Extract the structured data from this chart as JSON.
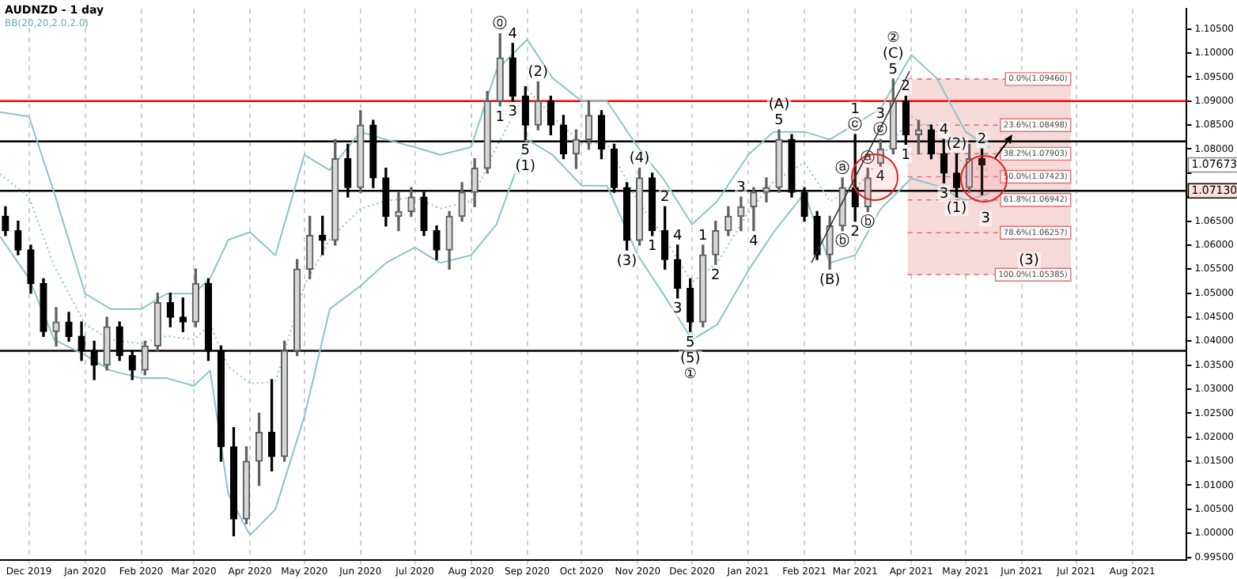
{
  "chart_data": {
    "type": "candlestick",
    "title": "AUDNZD - 1 day",
    "subtitle": "BB(20,20,2.0,2.0)",
    "x": [
      "2019-11-18",
      "2019-11-25",
      "2019-12-02",
      "2019-12-09",
      "2019-12-16",
      "2019-12-23",
      "2019-12-30",
      "2020-01-06",
      "2020-01-13",
      "2020-01-20",
      "2020-01-27",
      "2020-02-03",
      "2020-02-10",
      "2020-02-17",
      "2020-02-24",
      "2020-03-02",
      "2020-03-09",
      "2020-03-16",
      "2020-03-23",
      "2020-03-30",
      "2020-04-06",
      "2020-04-13",
      "2020-04-20",
      "2020-04-27",
      "2020-05-04",
      "2020-05-11",
      "2020-05-18",
      "2020-05-25",
      "2020-06-01",
      "2020-06-08",
      "2020-06-15",
      "2020-06-22",
      "2020-06-29",
      "2020-07-06",
      "2020-07-13",
      "2020-07-20",
      "2020-07-27",
      "2020-08-03",
      "2020-08-10",
      "2020-08-17",
      "2020-08-24",
      "2020-08-31",
      "2020-09-07",
      "2020-09-14",
      "2020-09-21",
      "2020-09-28",
      "2020-10-05",
      "2020-10-12",
      "2020-10-19",
      "2020-10-26",
      "2020-11-02",
      "2020-11-09",
      "2020-11-16",
      "2020-11-23",
      "2020-11-30",
      "2020-12-07",
      "2020-12-14",
      "2020-12-21",
      "2020-12-28",
      "2021-01-04",
      "2021-01-11",
      "2021-01-18",
      "2021-01-25",
      "2021-02-01",
      "2021-02-08",
      "2021-02-15",
      "2021-02-22",
      "2021-03-01",
      "2021-03-08",
      "2021-03-15",
      "2021-03-22",
      "2021-03-29",
      "2021-04-05",
      "2021-04-12",
      "2021-04-19",
      "2021-04-26",
      "2021-05-03",
      "2021-05-10"
    ],
    "ohlc": [
      [
        1.066,
        1.068,
        1.062,
        1.063
      ],
      [
        1.063,
        1.065,
        1.058,
        1.059
      ],
      [
        1.059,
        1.06,
        1.05,
        1.052
      ],
      [
        1.052,
        1.053,
        1.041,
        1.042
      ],
      [
        1.042,
        1.047,
        1.039,
        1.044
      ],
      [
        1.044,
        1.046,
        1.04,
        1.041
      ],
      [
        1.041,
        1.044,
        1.036,
        1.038
      ],
      [
        1.038,
        1.04,
        1.032,
        1.035
      ],
      [
        1.035,
        1.045,
        1.034,
        1.043
      ],
      [
        1.043,
        1.044,
        1.036,
        1.037
      ],
      [
        1.037,
        1.038,
        1.032,
        1.034
      ],
      [
        1.034,
        1.04,
        1.033,
        1.039
      ],
      [
        1.039,
        1.05,
        1.038,
        1.048
      ],
      [
        1.048,
        1.05,
        1.043,
        1.045
      ],
      [
        1.045,
        1.049,
        1.042,
        1.044
      ],
      [
        1.044,
        1.055,
        1.043,
        1.052
      ],
      [
        1.052,
        1.053,
        1.036,
        1.038
      ],
      [
        1.038,
        1.039,
        1.015,
        1.018
      ],
      [
        1.018,
        1.022,
        0.9995,
        1.003
      ],
      [
        1.003,
        1.018,
        1.002,
        1.015
      ],
      [
        1.015,
        1.025,
        1.01,
        1.021
      ],
      [
        1.021,
        1.032,
        1.013,
        1.016
      ],
      [
        1.016,
        1.04,
        1.015,
        1.038
      ],
      [
        1.038,
        1.057,
        1.037,
        1.055
      ],
      [
        1.055,
        1.066,
        1.053,
        1.062
      ],
      [
        1.062,
        1.066,
        1.058,
        1.061
      ],
      [
        1.061,
        1.082,
        1.06,
        1.078
      ],
      [
        1.078,
        1.081,
        1.07,
        1.072
      ],
      [
        1.072,
        1.088,
        1.071,
        1.085
      ],
      [
        1.085,
        1.086,
        1.072,
        1.074
      ],
      [
        1.074,
        1.076,
        1.064,
        1.066
      ],
      [
        1.066,
        1.071,
        1.063,
        1.067
      ],
      [
        1.067,
        1.072,
        1.066,
        1.07
      ],
      [
        1.07,
        1.071,
        1.062,
        1.063
      ],
      [
        1.063,
        1.064,
        1.057,
        1.059
      ],
      [
        1.059,
        1.067,
        1.055,
        1.066
      ],
      [
        1.066,
        1.073,
        1.065,
        1.071
      ],
      [
        1.071,
        1.078,
        1.068,
        1.076
      ],
      [
        1.076,
        1.092,
        1.075,
        1.09
      ],
      [
        1.09,
        1.104,
        1.089,
        1.099
      ],
      [
        1.099,
        1.102,
        1.09,
        1.091
      ],
      [
        1.091,
        1.093,
        1.082,
        1.085
      ],
      [
        1.085,
        1.094,
        1.084,
        1.09
      ],
      [
        1.09,
        1.091,
        1.083,
        1.085
      ],
      [
        1.085,
        1.087,
        1.078,
        1.079
      ],
      [
        1.079,
        1.084,
        1.076,
        1.082
      ],
      [
        1.082,
        1.09,
        1.08,
        1.087
      ],
      [
        1.087,
        1.088,
        1.078,
        1.08
      ],
      [
        1.08,
        1.081,
        1.071,
        1.072
      ],
      [
        1.072,
        1.073,
        1.059,
        1.061
      ],
      [
        1.061,
        1.076,
        1.06,
        1.074
      ],
      [
        1.074,
        1.075,
        1.062,
        1.063
      ],
      [
        1.063,
        1.068,
        1.055,
        1.057
      ],
      [
        1.057,
        1.06,
        1.049,
        1.051
      ],
      [
        1.051,
        1.053,
        1.042,
        1.044
      ],
      [
        1.044,
        1.06,
        1.043,
        1.058
      ],
      [
        1.058,
        1.065,
        1.056,
        1.063
      ],
      [
        1.063,
        1.068,
        1.062,
        1.066
      ],
      [
        1.066,
        1.07,
        1.063,
        1.068
      ],
      [
        1.068,
        1.072,
        1.063,
        1.071
      ],
      [
        1.071,
        1.074,
        1.069,
        1.072
      ],
      [
        1.072,
        1.084,
        1.071,
        1.082
      ],
      [
        1.082,
        1.083,
        1.07,
        1.071
      ],
      [
        1.071,
        1.072,
        1.065,
        1.066
      ],
      [
        1.066,
        1.067,
        1.057,
        1.058
      ],
      [
        1.058,
        1.066,
        1.055,
        1.064
      ],
      [
        1.064,
        1.074,
        1.063,
        1.072
      ],
      [
        1.072,
        1.083,
        1.065,
        1.068
      ],
      [
        1.068,
        1.076,
        1.067,
        1.074
      ],
      [
        1.077,
        1.082,
        1.0765,
        1.08
      ],
      [
        1.08,
        1.0946,
        1.079,
        1.09
      ],
      [
        1.09,
        1.091,
        1.081,
        1.083
      ],
      [
        1.083,
        1.086,
        1.079,
        1.084
      ],
      [
        1.084,
        1.085,
        1.078,
        1.079
      ],
      [
        1.079,
        1.082,
        1.073,
        1.075
      ],
      [
        1.075,
        1.079,
        1.07,
        1.072
      ],
      [
        1.072,
        1.081,
        1.071,
        1.078
      ],
      [
        1.078,
        1.08,
        1.0705,
        1.0767
      ]
    ],
    "series": [
      {
        "type": "line",
        "color": "#8cc4cc",
        "line_style": "solid",
        "x": [
          "2019-11-15",
          "2019-12-01",
          "2019-12-15",
          "2020-01-01",
          "2020-01-15",
          "2020-02-01",
          "2020-02-15",
          "2020-03-01",
          "2020-03-10",
          "2020-03-20",
          "2020-04-01",
          "2020-04-15",
          "2020-05-01",
          "2020-05-15",
          "2020-06-01",
          "2020-06-15",
          "2020-07-01",
          "2020-07-15",
          "2020-08-01",
          "2020-08-15",
          "2020-09-01",
          "2020-09-15",
          "2020-10-01",
          "2020-10-15",
          "2020-11-01",
          "2020-11-15",
          "2020-12-01",
          "2020-12-15",
          "2021-01-01",
          "2021-01-15",
          "2021-02-01",
          "2021-02-15",
          "2021-03-01",
          "2021-03-15",
          "2021-04-01",
          "2021-04-15",
          "2021-05-01",
          "2021-05-14"
        ],
        "values": [
          1.0877,
          1.0868,
          1.0708,
          1.0499,
          1.0467,
          1.0467,
          1.0499,
          1.0499,
          1.0531,
          1.0611,
          1.0627,
          1.0579,
          1.0788,
          1.0756,
          1.0836,
          1.082,
          1.0804,
          1.0788,
          1.0804,
          1.0964,
          1.1028,
          1.0948,
          1.09,
          1.09,
          1.0804,
          1.0739,
          1.0643,
          1.0692,
          1.0788,
          1.0836,
          1.0836,
          1.082,
          1.0852,
          1.0884,
          1.0996,
          1.0948,
          1.0836,
          1.0804
        ]
      },
      {
        "type": "line",
        "color": "#8cc4cc",
        "line_style": "dotted",
        "x": [
          "2019-11-15",
          "2019-12-01",
          "2019-12-15",
          "2020-01-01",
          "2020-01-15",
          "2020-02-01",
          "2020-02-15",
          "2020-03-01",
          "2020-03-10",
          "2020-03-20",
          "2020-04-01",
          "2020-04-15",
          "2020-05-01",
          "2020-05-15",
          "2020-06-01",
          "2020-06-15",
          "2020-07-01",
          "2020-07-15",
          "2020-08-01",
          "2020-08-15",
          "2020-09-01",
          "2020-09-15",
          "2020-10-01",
          "2020-10-15",
          "2020-11-01",
          "2020-11-15",
          "2020-12-01",
          "2020-12-15",
          "2021-01-01",
          "2021-01-15",
          "2021-02-01",
          "2021-02-15",
          "2021-03-01",
          "2021-03-15",
          "2021-04-01",
          "2021-04-15",
          "2021-05-01",
          "2021-05-14"
        ],
        "values": [
          1.0748,
          1.07,
          1.0556,
          1.0435,
          1.0403,
          1.0395,
          1.0411,
          1.0403,
          1.0435,
          1.0347,
          1.0312,
          1.0315,
          1.0516,
          1.0612,
          1.0676,
          1.0692,
          1.07,
          1.0676,
          1.0692,
          1.0804,
          1.0924,
          1.0868,
          1.0812,
          1.0812,
          1.0692,
          1.0619,
          1.0523,
          1.0564,
          1.0668,
          1.0732,
          1.0772,
          1.0692,
          1.0716,
          1.078,
          1.0868,
          1.0836,
          1.0764,
          1.0756
        ]
      },
      {
        "type": "line",
        "color": "#8cc4cc",
        "line_style": "solid",
        "x": [
          "2019-11-15",
          "2019-12-01",
          "2019-12-15",
          "2020-01-01",
          "2020-01-15",
          "2020-02-01",
          "2020-02-15",
          "2020-03-01",
          "2020-03-10",
          "2020-03-20",
          "2020-04-01",
          "2020-04-15",
          "2020-05-01",
          "2020-05-15",
          "2020-06-01",
          "2020-06-15",
          "2020-07-01",
          "2020-07-15",
          "2020-08-01",
          "2020-08-15",
          "2020-09-01",
          "2020-09-15",
          "2020-10-01",
          "2020-10-15",
          "2020-11-01",
          "2020-11-15",
          "2020-12-01",
          "2020-12-15",
          "2021-01-01",
          "2021-01-15",
          "2021-02-01",
          "2021-02-15",
          "2021-03-01",
          "2021-03-15",
          "2021-04-01",
          "2021-04-15",
          "2021-05-01",
          "2021-05-14"
        ],
        "values": [
          1.0618,
          1.0531,
          1.0403,
          1.0371,
          1.0339,
          1.0323,
          1.0323,
          1.0307,
          1.0339,
          1.0082,
          0.9996,
          1.005,
          1.0243,
          1.0467,
          1.0515,
          1.0563,
          1.0595,
          1.0563,
          1.0579,
          1.0643,
          1.082,
          1.0788,
          1.0724,
          1.0724,
          1.0579,
          1.0499,
          1.0403,
          1.0435,
          1.0547,
          1.0627,
          1.0708,
          1.0563,
          1.0579,
          1.0675,
          1.0739,
          1.0724,
          1.0692,
          1.0708
        ]
      }
    ],
    "xlim": [
      "2019-11-15",
      "2021-08-31"
    ],
    "ylim": [
      0.9945,
      1.1092
    ],
    "xticks": [
      {
        "value": "2019-12-01",
        "label": "Dec 2019"
      },
      {
        "value": "2020-01-01",
        "label": "Jan 2020"
      },
      {
        "value": "2020-02-01",
        "label": "Feb 2020"
      },
      {
        "value": "2020-03-01",
        "label": "Mar 2020"
      },
      {
        "value": "2020-04-01",
        "label": "Apr 2020"
      },
      {
        "value": "2020-05-01",
        "label": "May 2020"
      },
      {
        "value": "2020-06-01",
        "label": "Jun 2020"
      },
      {
        "value": "2020-07-01",
        "label": "Jul 2020"
      },
      {
        "value": "2020-08-01",
        "label": "Aug 2020"
      },
      {
        "value": "2020-09-01",
        "label": "Sep 2020"
      },
      {
        "value": "2020-10-01",
        "label": "Oct 2020"
      },
      {
        "value": "2020-11-01",
        "label": "Nov 2020"
      },
      {
        "value": "2020-12-01",
        "label": "Dec 2020"
      },
      {
        "value": "2021-01-01",
        "label": "Jan 2021"
      },
      {
        "value": "2021-02-01",
        "label": "Feb 2021"
      },
      {
        "value": "2021-03-01",
        "label": "Mar 2021"
      },
      {
        "value": "2021-04-01",
        "label": "Apr 2021"
      },
      {
        "value": "2021-05-01",
        "label": "May 2021"
      },
      {
        "value": "2021-06-01",
        "label": "Jun 2021"
      },
      {
        "value": "2021-07-01",
        "label": "Jul 2021"
      },
      {
        "value": "2021-08-01",
        "label": "Aug 2021"
      }
    ],
    "yticks": [
      {
        "value": 0.995,
        "label": "0.99500"
      },
      {
        "value": 1.0,
        "label": "1.00000"
      },
      {
        "value": 1.005,
        "label": "1.00500"
      },
      {
        "value": 1.01,
        "label": "1.01000"
      },
      {
        "value": 1.015,
        "label": "1.01500"
      },
      {
        "value": 1.02,
        "label": "1.02000"
      },
      {
        "value": 1.025,
        "label": "1.02500"
      },
      {
        "value": 1.03,
        "label": "1.03000"
      },
      {
        "value": 1.035,
        "label": "1.03500"
      },
      {
        "value": 1.04,
        "label": "1.04000"
      },
      {
        "value": 1.045,
        "label": "1.04500"
      },
      {
        "value": 1.05,
        "label": "1.05000"
      },
      {
        "value": 1.055,
        "label": "1.05500"
      },
      {
        "value": 1.06,
        "label": "1.06000"
      },
      {
        "value": 1.065,
        "label": "1.06500"
      },
      {
        "value": 1.07,
        "label": null
      },
      {
        "value": 1.075,
        "label": null
      },
      {
        "value": 1.08,
        "label": "1.08000"
      },
      {
        "value": 1.085,
        "label": "1.08500"
      },
      {
        "value": 1.09,
        "label": "1.09000"
      },
      {
        "value": 1.095,
        "label": "1.09500"
      },
      {
        "value": 1.1,
        "label": "1.10000"
      },
      {
        "value": 1.105,
        "label": "1.10500"
      }
    ],
    "grid": "x",
    "bands": [
      {
        "axis": "x",
        "from": "2021-03-30",
        "to": "2021-06-28",
        "color": "#f6dada"
      }
    ],
    "ref_lines": [
      {
        "axis": "y",
        "value": 1.09,
        "color": "#ff0000",
        "line_style": "solid"
      },
      {
        "axis": "y",
        "value": 1.0816,
        "color": "#000000",
        "line_style": "solid"
      },
      {
        "axis": "y",
        "value": 1.0713,
        "color": "#000000",
        "line_style": "solid",
        "label": "1.07130"
      },
      {
        "axis": "y",
        "value": 1.038,
        "color": "#000000",
        "line_style": "solid"
      },
      {
        "axis": "y",
        "value": 1.0946,
        "color": "#e07070",
        "line_style": "dashed",
        "label": "0.0%(1.09460)"
      },
      {
        "axis": "y",
        "value": 1.08498,
        "color": "#e07070",
        "line_style": "dashed",
        "label": "23.6%(1.08498)"
      },
      {
        "axis": "y",
        "value": 1.07903,
        "color": "#e07070",
        "line_style": "dashed",
        "label": "38.2%(1.07903)"
      },
      {
        "axis": "y",
        "value": 1.07423,
        "color": "#e07070",
        "line_style": "dashed",
        "label": "50.0%(1.07423)"
      },
      {
        "axis": "y",
        "value": 1.06942,
        "color": "#e07070",
        "line_style": "dashed",
        "label": "61.8%(1.06942)"
      },
      {
        "axis": "y",
        "value": 1.06257,
        "color": "#e07070",
        "line_style": "dashed",
        "label": "78.6%(1.06257)"
      },
      {
        "axis": "y",
        "value": 1.05385,
        "color": "#e07070",
        "line_style": "dashed",
        "label": "100.0%(1.05385)"
      }
    ],
    "annotations": [
      {
        "text": "⓪",
        "x": "2020-08-17",
        "y": 1.104
      },
      {
        "text": "1",
        "x": "2020-08-17",
        "y": 1.089
      },
      {
        "text": "4",
        "x": "2020-08-24",
        "y": 1.102
      },
      {
        "text": "3",
        "x": "2020-08-24",
        "y": 1.09
      },
      {
        "text": "(2)",
        "x": "2020-09-07",
        "y": 1.094
      },
      {
        "text": "5",
        "x": "2020-08-31",
        "y": 1.082
      },
      {
        "text": "(1)",
        "x": "2020-08-31",
        "y": 1.082
      },
      {
        "text": "(4)",
        "x": "2020-11-02",
        "y": 1.076
      },
      {
        "text": "(3)",
        "x": "2020-10-26",
        "y": 1.059
      },
      {
        "text": "2",
        "x": "2020-11-16",
        "y": 1.068
      },
      {
        "text": "1",
        "x": "2020-11-09",
        "y": 1.062
      },
      {
        "text": "4",
        "x": "2020-11-23",
        "y": 1.06
      },
      {
        "text": "3",
        "x": "2020-11-23",
        "y": 1.049
      },
      {
        "text": "5",
        "x": "2020-11-30",
        "y": 1.042
      },
      {
        "text": "(5)",
        "x": "2020-11-30",
        "y": 1.042
      },
      {
        "text": "①",
        "x": "2020-11-30",
        "y": 1.042
      },
      {
        "text": "1",
        "x": "2020-12-07",
        "y": 1.06
      },
      {
        "text": "2",
        "x": "2020-12-14",
        "y": 1.056
      },
      {
        "text": "3",
        "x": "2020-12-28",
        "y": 1.07
      },
      {
        "text": "4",
        "x": "2021-01-04",
        "y": 1.063
      },
      {
        "text": "5",
        "x": "2021-01-18",
        "y": 1.084
      },
      {
        "text": "(A)",
        "x": "2021-01-18",
        "y": 1.084
      },
      {
        "text": "(B)",
        "x": "2021-02-15",
        "y": 1.055
      },
      {
        "text": "ⓐ",
        "x": "2021-02-22",
        "y": 1.074
      },
      {
        "text": "ⓑ",
        "x": "2021-02-22",
        "y": 1.063
      },
      {
        "text": "ⓒ",
        "x": "2021-03-01",
        "y": 1.083
      },
      {
        "text": "1",
        "x": "2021-03-01",
        "y": 1.083
      },
      {
        "text": "2",
        "x": "2021-03-01",
        "y": 1.065
      },
      {
        "text": "ⓐ",
        "x": "2021-03-08",
        "y": 1.076
      },
      {
        "text": "ⓑ",
        "x": "2021-03-08",
        "y": 1.067
      },
      {
        "text": "ⓒ",
        "x": "2021-03-15",
        "y": 1.082
      },
      {
        "text": "3",
        "x": "2021-03-15",
        "y": 1.082
      },
      {
        "text": "4",
        "x": "2021-03-15",
        "y": 1.0765
      },
      {
        "text": "5",
        "x": "2021-03-22",
        "y": 1.0946
      },
      {
        "text": "(C)",
        "x": "2021-03-22",
        "y": 1.0946
      },
      {
        "text": "②",
        "x": "2021-03-22",
        "y": 1.0946
      },
      {
        "text": "2",
        "x": "2021-03-29",
        "y": 1.091
      },
      {
        "text": "1",
        "x": "2021-03-29",
        "y": 1.081
      },
      {
        "text": "4",
        "x": "2021-04-19",
        "y": 1.082
      },
      {
        "text": "3",
        "x": "2021-04-19",
        "y": 1.073
      },
      {
        "text": "(2)",
        "x": "2021-04-26",
        "y": 1.079
      },
      {
        "text": "(1)",
        "x": "2021-04-26",
        "y": 1.07
      },
      {
        "text": "2",
        "x": "2021-05-10",
        "y": 1.08
      },
      "1.07673",
      {
        "text": "3",
        "x": "2021-05-12",
        "y": 1.06257
      },
      {
        "text": "(3)",
        "x": "2021-06-05",
        "y": 1.05385
      }
    ]
  }
}
